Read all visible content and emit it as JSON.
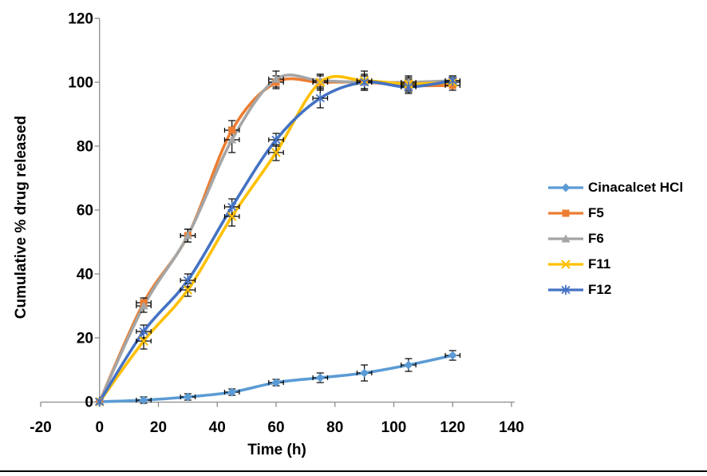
{
  "figure": {
    "background": "#FFFFFF",
    "axis_color": "#8C8C8C",
    "error_bar_color": "#000000",
    "text_color": "#000000",
    "bottom_rule_color": "#000000"
  },
  "chart_data": {
    "type": "line",
    "title": "",
    "xlabel": "Time (h)",
    "ylabel": "Cumulative % drug released",
    "xlim": [
      -20,
      140
    ],
    "ylim": [
      0,
      120
    ],
    "x_ticks": [
      -20,
      0,
      20,
      40,
      60,
      80,
      100,
      120,
      140
    ],
    "y_ticks": [
      0,
      20,
      40,
      60,
      80,
      100,
      120
    ],
    "grid": false,
    "smoothed_lines": true,
    "legend_position": "right",
    "x": [
      0,
      15,
      30,
      45,
      60,
      75,
      90,
      105,
      120
    ],
    "series": [
      {
        "name": "Cinacalcet HCl",
        "color": "#5B9BD5",
        "marker": "diamond",
        "values": [
          0,
          0.5,
          1.5,
          3,
          6,
          7.5,
          9,
          11.5,
          14.5
        ],
        "y_err": [
          0,
          1,
          1,
          1,
          1,
          1.5,
          2.5,
          2,
          1.5
        ],
        "x_err": 2.5
      },
      {
        "name": "F5",
        "color": "#ED7D31",
        "marker": "square",
        "values": [
          0,
          31,
          52,
          85,
          100,
          100,
          100,
          99,
          99
        ],
        "y_err": [
          0,
          1.5,
          2,
          3,
          2,
          2,
          2,
          2,
          1.5
        ],
        "x_err": 2.5
      },
      {
        "name": "F6",
        "color": "#A5A5A5",
        "marker": "triangle",
        "values": [
          0,
          30,
          52,
          82,
          101,
          100.5,
          100,
          100,
          100.5
        ],
        "y_err": [
          0,
          2,
          2,
          4,
          2.5,
          2,
          2,
          2,
          1.5
        ],
        "x_err": 2.5
      },
      {
        "name": "F11",
        "color": "#FFC000",
        "marker": "x",
        "values": [
          0,
          19,
          35,
          58,
          78,
          100,
          100.5,
          99.5,
          100
        ],
        "y_err": [
          0,
          2.5,
          2,
          3,
          2.5,
          2.5,
          3,
          2,
          1.5
        ],
        "x_err": 2.5
      },
      {
        "name": "F12",
        "color": "#4472C4",
        "marker": "asterisk",
        "values": [
          0,
          22,
          38,
          61,
          82,
          95,
          100,
          98.5,
          100.5
        ],
        "y_err": [
          0,
          2,
          2,
          2.5,
          2,
          3,
          2.5,
          2,
          1.5
        ],
        "x_err": 2.5
      }
    ]
  }
}
